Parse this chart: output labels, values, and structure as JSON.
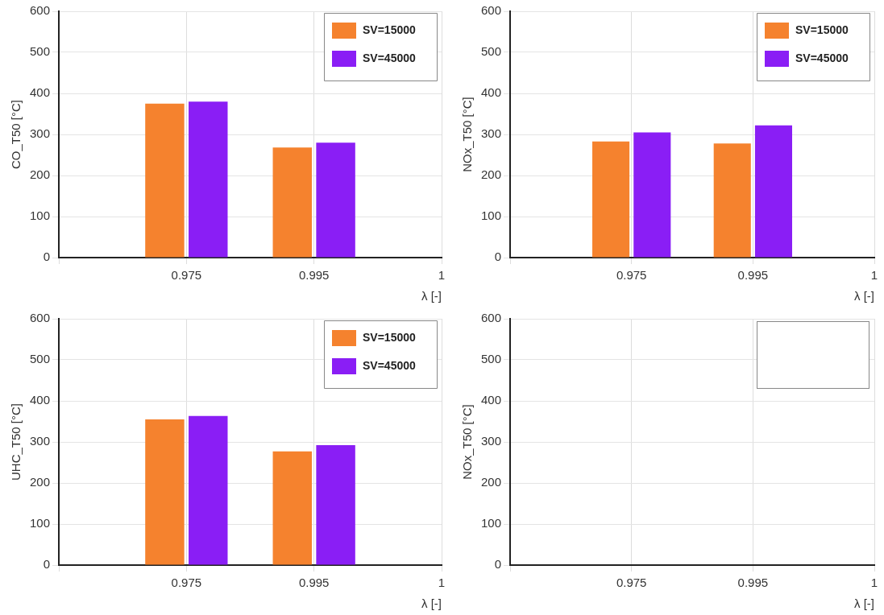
{
  "chart_data": [
    {
      "type": "bar",
      "xlabel": "λ [-]",
      "ylabel": "CO_T50 [°C]",
      "categories": [
        null,
        "0.975",
        "0.995",
        "1"
      ],
      "ylim": [
        0,
        600
      ],
      "yticks": [
        0,
        100,
        200,
        300,
        400,
        500,
        600
      ],
      "grid": true,
      "legend": "top right",
      "series": [
        {
          "name": "SV=15000",
          "color": "#f5822e",
          "values": [
            null,
            375,
            268,
            null
          ]
        },
        {
          "name": "SV=45000",
          "color": "#8a1ef5",
          "values": [
            null,
            380,
            280,
            null
          ]
        }
      ]
    },
    {
      "type": "bar",
      "xlabel": "λ [-]",
      "ylabel": "NOx_T50 [°C]",
      "categories": [
        null,
        "0.975",
        "0.995",
        "1"
      ],
      "ylim": [
        0,
        600
      ],
      "yticks": [
        0,
        100,
        200,
        300,
        400,
        500,
        600
      ],
      "grid": true,
      "legend": "top right",
      "series": [
        {
          "name": "SV=15000",
          "color": "#f5822e",
          "values": [
            null,
            283,
            278,
            null
          ]
        },
        {
          "name": "SV=45000",
          "color": "#8a1ef5",
          "values": [
            null,
            305,
            322,
            null
          ]
        }
      ]
    },
    {
      "type": "bar",
      "xlabel": "λ [-]",
      "ylabel": "UHC_T50 [°C]",
      "categories": [
        null,
        "0.975",
        "0.995",
        "1"
      ],
      "ylim": [
        0,
        600
      ],
      "yticks": [
        0,
        100,
        200,
        300,
        400,
        500,
        600
      ],
      "grid": true,
      "legend": "top right",
      "series": [
        {
          "name": "SV=15000",
          "color": "#f5822e",
          "values": [
            null,
            355,
            277,
            null
          ]
        },
        {
          "name": "SV=45000",
          "color": "#8a1ef5",
          "values": [
            null,
            363,
            292,
            null
          ]
        }
      ]
    },
    {
      "type": "bar",
      "xlabel": "λ [-]",
      "ylabel": "NOx_T50 [°C]",
      "categories": [
        null,
        "0.975",
        "0.995",
        "1"
      ],
      "ylim": [
        0,
        600
      ],
      "yticks": [
        0,
        100,
        200,
        300,
        400,
        500,
        600
      ],
      "grid": true
    }
  ]
}
